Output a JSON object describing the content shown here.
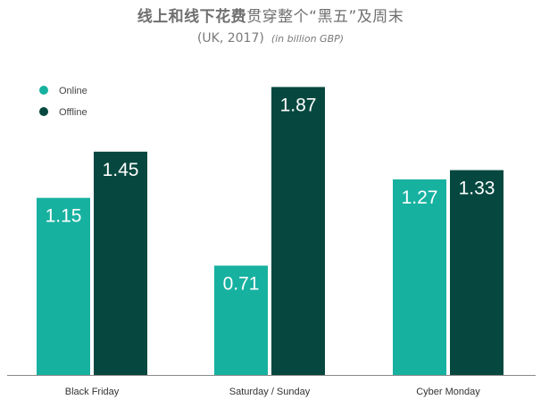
{
  "header": {
    "title_bold": "线上和线下花费",
    "title_rest": "贯穿整个“黑五”及周末",
    "subtitle": "(UK, 2017)",
    "unit": "(in billion GBP)"
  },
  "chart_data": {
    "type": "bar",
    "title": "线上和线下花费贯穿整个“黑五”及周末",
    "subtitle": "(UK, 2017)",
    "ylabel": "(in billion GBP)",
    "xlabel": "",
    "categories": [
      "Black Friday",
      "Saturday / Sunday",
      "Cyber Monday"
    ],
    "series": [
      {
        "name": "Online",
        "color": "#17b1a0",
        "values": [
          1.15,
          0.71,
          1.27
        ],
        "labels": [
          "1.15",
          "0.71",
          "1.27"
        ]
      },
      {
        "name": "Offline",
        "color": "#06483f",
        "values": [
          1.45,
          1.87,
          1.33
        ],
        "labels": [
          "1.45",
          "1.87",
          "1.33"
        ]
      }
    ],
    "ylim": [
      0,
      2.0
    ],
    "grid": false,
    "legend_position": "top-left"
  }
}
